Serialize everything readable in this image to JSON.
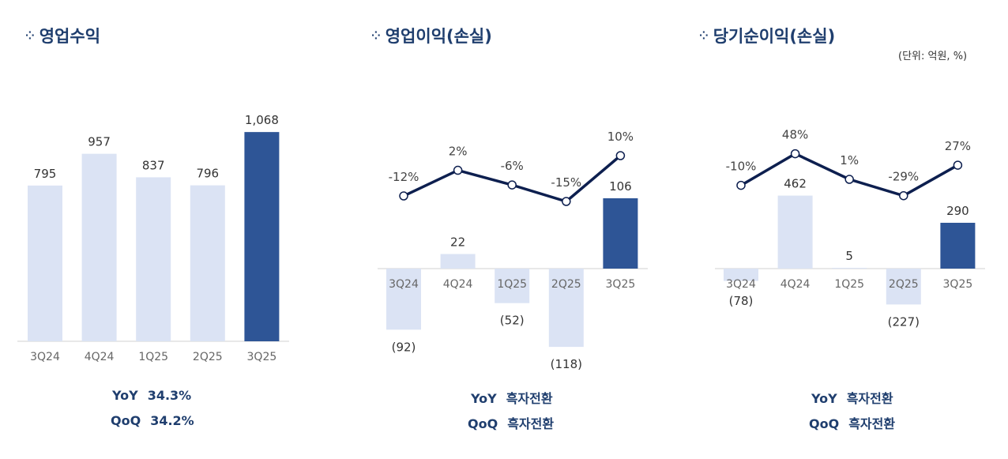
{
  "unit_label": "(단위: 억원, %)",
  "colors": {
    "light_bar": "#dbe3f4",
    "highlight_bar": "#2e5596",
    "line": "#0d1f4f",
    "title": "#1f3e6e"
  },
  "chart_data": [
    {
      "type": "bar",
      "title": "영업수익",
      "categories": [
        "3Q24",
        "4Q24",
        "1Q25",
        "2Q25",
        "3Q25"
      ],
      "values": [
        795,
        957,
        837,
        796,
        1068
      ],
      "value_labels": [
        "795",
        "957",
        "837",
        "796",
        "1,068"
      ],
      "highlight": "3Q25",
      "summary": [
        {
          "label": "YoY",
          "value": "34.3%"
        },
        {
          "label": "QoQ",
          "value": "34.2%"
        }
      ]
    },
    {
      "type": "bar+line",
      "title": "영업이익(손실)",
      "categories": [
        "3Q24",
        "4Q24",
        "1Q25",
        "2Q25",
        "3Q25"
      ],
      "values": [
        -92,
        22,
        -52,
        -118,
        106
      ],
      "value_labels": [
        "(92)",
        "22",
        "(52)",
        "(118)",
        "106"
      ],
      "line_values": [
        -12,
        2,
        -6,
        -15,
        10
      ],
      "line_labels": [
        "-12%",
        "2%",
        "-6%",
        "-15%",
        "10%"
      ],
      "highlight": "3Q25",
      "summary": [
        {
          "label": "YoY",
          "value": "흑자전환"
        },
        {
          "label": "QoQ",
          "value": "흑자전환"
        }
      ]
    },
    {
      "type": "bar+line",
      "title": "당기순이익(손실)",
      "categories": [
        "3Q24",
        "4Q24",
        "1Q25",
        "2Q25",
        "3Q25"
      ],
      "values": [
        -78,
        462,
        5,
        -227,
        290
      ],
      "value_labels": [
        "(78)",
        "462",
        "5",
        "(227)",
        "290"
      ],
      "line_values": [
        -10,
        48,
        1,
        -29,
        27
      ],
      "line_labels": [
        "-10%",
        "48%",
        "1%",
        "-29%",
        "27%"
      ],
      "highlight": "3Q25",
      "summary": [
        {
          "label": "YoY",
          "value": "흑자전환"
        },
        {
          "label": "QoQ",
          "value": "흑자전환"
        }
      ]
    }
  ]
}
